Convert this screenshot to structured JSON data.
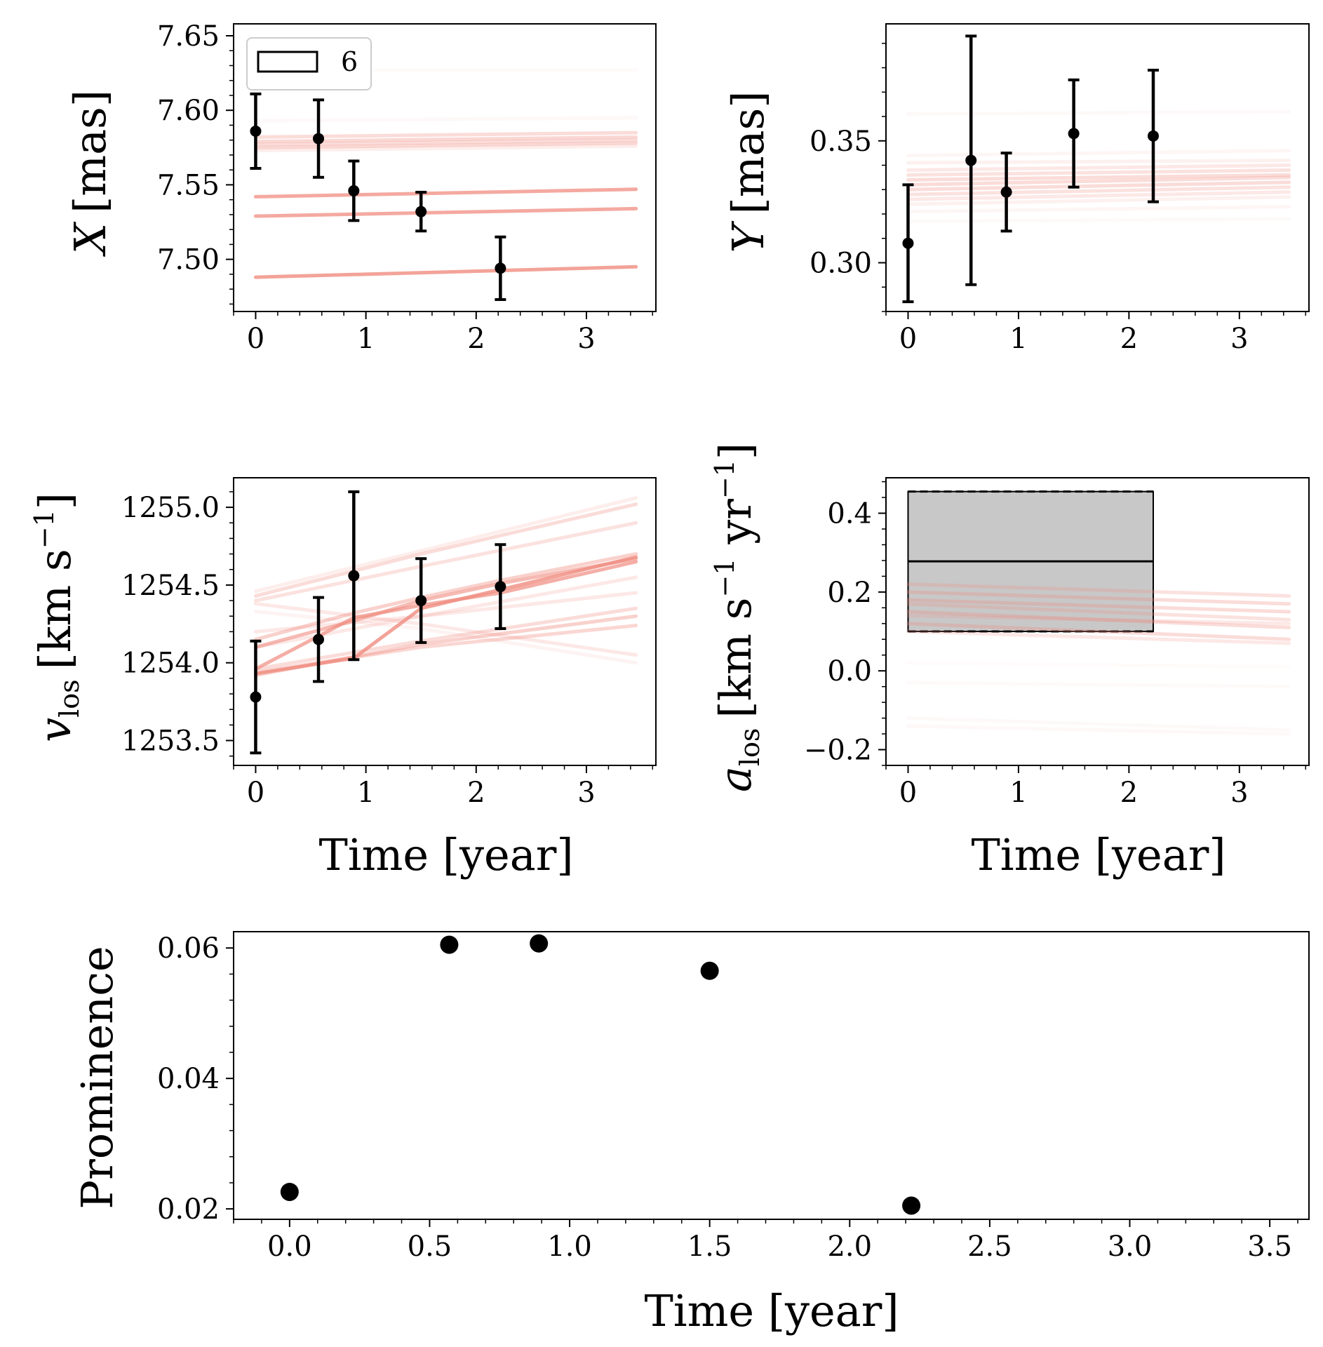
{
  "figure": {
    "colors": {
      "model": "#f08c80",
      "points": "#000000",
      "band": "#c8c8c8"
    }
  },
  "chart_data": [
    {
      "id": "x",
      "type": "line",
      "title": "",
      "xlabel": "",
      "ylabel": "X [mas]",
      "ylabel_parts": {
        "symbol": "X",
        "unit": "[mas]"
      },
      "xlim": [
        -0.2,
        3.63
      ],
      "ylim": [
        7.465,
        7.658
      ],
      "x_ticks": [
        0,
        1,
        2,
        3
      ],
      "x_tick_labels": [
        "0",
        "1",
        "2",
        "3"
      ],
      "y_ticks": [
        7.5,
        7.55,
        7.6,
        7.65
      ],
      "y_tick_labels": [
        "7.50",
        "7.55",
        "7.60",
        "7.65"
      ],
      "legend": {
        "label": "6",
        "position": "top-left"
      },
      "measurements": {
        "x": [
          0.0,
          0.57,
          0.89,
          1.5,
          2.22
        ],
        "y": [
          7.586,
          7.581,
          7.546,
          7.532,
          7.494
        ],
        "yerr": [
          0.025,
          0.026,
          0.02,
          0.013,
          0.021
        ]
      },
      "model_lines": [
        {
          "x": [
            0,
            3.45
          ],
          "y": [
            7.575,
            7.578
          ],
          "alpha": 0.35
        },
        {
          "x": [
            0,
            3.45
          ],
          "y": [
            7.579,
            7.582
          ],
          "alpha": 0.35
        },
        {
          "x": [
            0,
            3.45
          ],
          "y": [
            7.582,
            7.585
          ],
          "alpha": 0.3
        },
        {
          "x": [
            0,
            3.45
          ],
          "y": [
            7.577,
            7.58
          ],
          "alpha": 0.3
        },
        {
          "x": [
            0,
            3.45
          ],
          "y": [
            7.573,
            7.576
          ],
          "alpha": 0.15
        },
        {
          "x": [
            0,
            3.45
          ],
          "y": [
            7.542,
            7.547
          ],
          "alpha": 0.75
        },
        {
          "x": [
            0,
            3.45
          ],
          "y": [
            7.529,
            7.534
          ],
          "alpha": 0.75
        },
        {
          "x": [
            0,
            3.45
          ],
          "y": [
            7.488,
            7.495
          ],
          "alpha": 0.8
        },
        {
          "x": [
            0,
            3.45
          ],
          "y": [
            7.627,
            7.627
          ],
          "alpha": 0.04
        },
        {
          "x": [
            0,
            3.45
          ],
          "y": [
            7.593,
            7.595
          ],
          "alpha": 0.06
        }
      ]
    },
    {
      "id": "y",
      "type": "line",
      "title": "",
      "xlabel": "",
      "ylabel": "Y [mas]",
      "ylabel_parts": {
        "symbol": "Y",
        "unit": "[mas]"
      },
      "xlim": [
        -0.2,
        3.63
      ],
      "ylim": [
        0.28,
        0.398
      ],
      "x_ticks": [
        0,
        1,
        2,
        3
      ],
      "x_tick_labels": [
        "0",
        "1",
        "2",
        "3"
      ],
      "y_ticks": [
        0.3,
        0.35
      ],
      "y_tick_labels": [
        "0.30",
        "0.35"
      ],
      "measurements": {
        "x": [
          0.0,
          0.57,
          0.89,
          1.5,
          2.22
        ],
        "y": [
          0.308,
          0.342,
          0.329,
          0.353,
          0.352
        ],
        "yerr": [
          0.024,
          0.051,
          0.016,
          0.022,
          0.027
        ]
      },
      "model_lines": [
        {
          "x": [
            0,
            3.45
          ],
          "y": [
            0.33,
            0.333
          ],
          "alpha": 0.3
        },
        {
          "x": [
            0,
            3.45
          ],
          "y": [
            0.332,
            0.335
          ],
          "alpha": 0.3
        },
        {
          "x": [
            0,
            3.45
          ],
          "y": [
            0.334,
            0.336
          ],
          "alpha": 0.3
        },
        {
          "x": [
            0,
            3.45
          ],
          "y": [
            0.328,
            0.331
          ],
          "alpha": 0.25
        },
        {
          "x": [
            0,
            3.45
          ],
          "y": [
            0.336,
            0.338
          ],
          "alpha": 0.25
        },
        {
          "x": [
            0,
            3.45
          ],
          "y": [
            0.326,
            0.329
          ],
          "alpha": 0.2
        },
        {
          "x": [
            0,
            3.45
          ],
          "y": [
            0.338,
            0.34
          ],
          "alpha": 0.2
        },
        {
          "x": [
            0,
            3.45
          ],
          "y": [
            0.324,
            0.327
          ],
          "alpha": 0.12
        },
        {
          "x": [
            0,
            3.45
          ],
          "y": [
            0.341,
            0.342
          ],
          "alpha": 0.12
        },
        {
          "x": [
            0,
            3.45
          ],
          "y": [
            0.321,
            0.323
          ],
          "alpha": 0.08
        },
        {
          "x": [
            0,
            3.45
          ],
          "y": [
            0.344,
            0.346
          ],
          "alpha": 0.08
        },
        {
          "x": [
            0,
            3.45
          ],
          "y": [
            0.361,
            0.362
          ],
          "alpha": 0.05
        },
        {
          "x": [
            0,
            3.45
          ],
          "y": [
            0.317,
            0.318
          ],
          "alpha": 0.05
        }
      ]
    },
    {
      "id": "vlos",
      "type": "line",
      "title": "",
      "xlabel": "Time [year]",
      "ylabel": "v_los [km s^-1]",
      "ylabel_parts": {
        "symbol": "v",
        "sub": "los",
        "unit_pre": "[km s",
        "sup": "−1",
        "unit_post": "]"
      },
      "xlim": [
        -0.2,
        3.63
      ],
      "ylim": [
        1253.34,
        1255.19
      ],
      "x_ticks": [
        0,
        1,
        2,
        3
      ],
      "x_tick_labels": [
        "0",
        "1",
        "2",
        "3"
      ],
      "y_ticks": [
        1253.5,
        1254.0,
        1254.5,
        1255.0
      ],
      "y_tick_labels": [
        "1253.5",
        "1254.0",
        "1254.5",
        "1255.0"
      ],
      "measurements": {
        "x": [
          0.0,
          0.57,
          0.89,
          1.5,
          2.22
        ],
        "y": [
          1253.78,
          1254.15,
          1254.56,
          1254.4,
          1254.49
        ],
        "yerr": [
          0.36,
          0.27,
          0.54,
          0.27,
          0.27
        ]
      },
      "model_lines": [
        {
          "x": [
            0,
            0.89,
            1.5,
            2.22,
            3.45
          ],
          "y": [
            1253.93,
            1254.03,
            1254.35,
            1254.47,
            1254.68
          ],
          "alpha": 0.8
        },
        {
          "x": [
            0,
            0.89,
            1.5,
            2.22,
            3.45
          ],
          "y": [
            1253.96,
            1254.29,
            1254.37,
            1254.45,
            1254.65
          ],
          "alpha": 0.7
        },
        {
          "x": [
            0,
            0.89,
            1.5,
            2.22,
            3.45
          ],
          "y": [
            1254.1,
            1254.27,
            1254.4,
            1254.51,
            1254.67
          ],
          "alpha": 0.6
        },
        {
          "x": [
            0,
            0.89,
            1.5,
            2.22,
            3.45
          ],
          "y": [
            1254.15,
            1254.32,
            1254.42,
            1254.53,
            1254.7
          ],
          "alpha": 0.4
        },
        {
          "x": [
            0,
            1.5,
            3.45
          ],
          "y": [
            1254.43,
            1254.7,
            1255.02
          ],
          "alpha": 0.3
        },
        {
          "x": [
            0,
            1.5,
            3.45
          ],
          "y": [
            1254.4,
            1254.62,
            1254.9
          ],
          "alpha": 0.25
        },
        {
          "x": [
            0,
            1.5,
            3.45
          ],
          "y": [
            1254.46,
            1254.72,
            1255.06
          ],
          "alpha": 0.15
        },
        {
          "x": [
            0,
            1.5,
            3.45
          ],
          "y": [
            1253.92,
            1254.12,
            1254.3
          ],
          "alpha": 0.4
        },
        {
          "x": [
            0,
            1.5,
            3.45
          ],
          "y": [
            1253.94,
            1254.1,
            1254.24
          ],
          "alpha": 0.35
        },
        {
          "x": [
            0,
            1.5,
            3.45
          ],
          "y": [
            1253.96,
            1254.14,
            1254.35
          ],
          "alpha": 0.3
        },
        {
          "x": [
            0,
            1.5,
            3.45
          ],
          "y": [
            1254.2,
            1254.3,
            1254.45
          ],
          "alpha": 0.2
        },
        {
          "x": [
            0,
            1.5,
            3.45
          ],
          "y": [
            1254.38,
            1254.25,
            1254.05
          ],
          "alpha": 0.2
        },
        {
          "x": [
            0,
            1.5,
            3.45
          ],
          "y": [
            1254.33,
            1254.22,
            1254.0
          ],
          "alpha": 0.1
        },
        {
          "x": [
            0,
            1.5,
            3.45
          ],
          "y": [
            1254.1,
            1254.3,
            1254.55
          ],
          "alpha": 0.2
        }
      ]
    },
    {
      "id": "alos",
      "type": "line",
      "title": "",
      "xlabel": "Time [year]",
      "ylabel": "a_los [km s^-1 yr^-1]",
      "ylabel_parts": {
        "symbol": "a",
        "sub": "los",
        "unit_pre": "[km s",
        "sup": "−1",
        "unit_mid": " yr",
        "sup2": "−1",
        "unit_post": "]"
      },
      "xlim": [
        -0.2,
        3.63
      ],
      "ylim": [
        -0.24,
        0.49
      ],
      "x_ticks": [
        0,
        1,
        2,
        3
      ],
      "x_tick_labels": [
        "0",
        "1",
        "2",
        "3"
      ],
      "y_ticks": [
        -0.2,
        0.0,
        0.2,
        0.4
      ],
      "y_tick_labels": [
        "−0.2",
        "0.0",
        "0.2",
        "0.4"
      ],
      "band": {
        "x0": 0.0,
        "x1": 2.22,
        "lower": 0.1,
        "upper": 0.455,
        "median": 0.278
      },
      "model_lines": [
        {
          "x": [
            0,
            3.45
          ],
          "y": [
            0.2,
            0.17
          ],
          "alpha": 0.3
        },
        {
          "x": [
            0,
            3.45
          ],
          "y": [
            0.18,
            0.15
          ],
          "alpha": 0.3
        },
        {
          "x": [
            0,
            3.45
          ],
          "y": [
            0.15,
            0.11
          ],
          "alpha": 0.3
        },
        {
          "x": [
            0,
            3.45
          ],
          "y": [
            0.12,
            0.08
          ],
          "alpha": 0.3
        },
        {
          "x": [
            0,
            3.45
          ],
          "y": [
            0.22,
            0.19
          ],
          "alpha": 0.25
        },
        {
          "x": [
            0,
            3.45
          ],
          "y": [
            0.1,
            0.07
          ],
          "alpha": 0.2
        },
        {
          "x": [
            0,
            3.45
          ],
          "y": [
            0.17,
            0.13
          ],
          "alpha": 0.25
        },
        {
          "x": [
            0,
            3.45
          ],
          "y": [
            0.14,
            0.12
          ],
          "alpha": 0.2
        },
        {
          "x": [
            0,
            3.45
          ],
          "y": [
            -0.14,
            -0.16
          ],
          "alpha": 0.06
        },
        {
          "x": [
            0,
            3.45
          ],
          "y": [
            -0.12,
            -0.15
          ],
          "alpha": 0.05
        },
        {
          "x": [
            0,
            3.45
          ],
          "y": [
            -0.03,
            -0.04
          ],
          "alpha": 0.04
        },
        {
          "x": [
            0,
            3.45
          ],
          "y": [
            0.02,
            0.01
          ],
          "alpha": 0.03
        }
      ]
    },
    {
      "id": "prominence",
      "type": "scatter",
      "title": "",
      "xlabel": "Time [year]",
      "ylabel": "Prominence",
      "xlim": [
        -0.2,
        3.64
      ],
      "ylim": [
        0.0184,
        0.0625
      ],
      "x_ticks": [
        0.0,
        0.5,
        1.0,
        1.5,
        2.0,
        2.5,
        3.0,
        3.5
      ],
      "x_tick_labels": [
        "0.0",
        "0.5",
        "1.0",
        "1.5",
        "2.0",
        "2.5",
        "3.0",
        "3.5"
      ],
      "y_ticks": [
        0.02,
        0.04,
        0.06
      ],
      "y_tick_labels": [
        "0.02",
        "0.04",
        "0.06"
      ],
      "points": {
        "x": [
          0.0,
          0.57,
          0.89,
          1.5,
          2.22
        ],
        "y": [
          0.0226,
          0.0605,
          0.0607,
          0.0565,
          0.0205
        ]
      }
    }
  ]
}
